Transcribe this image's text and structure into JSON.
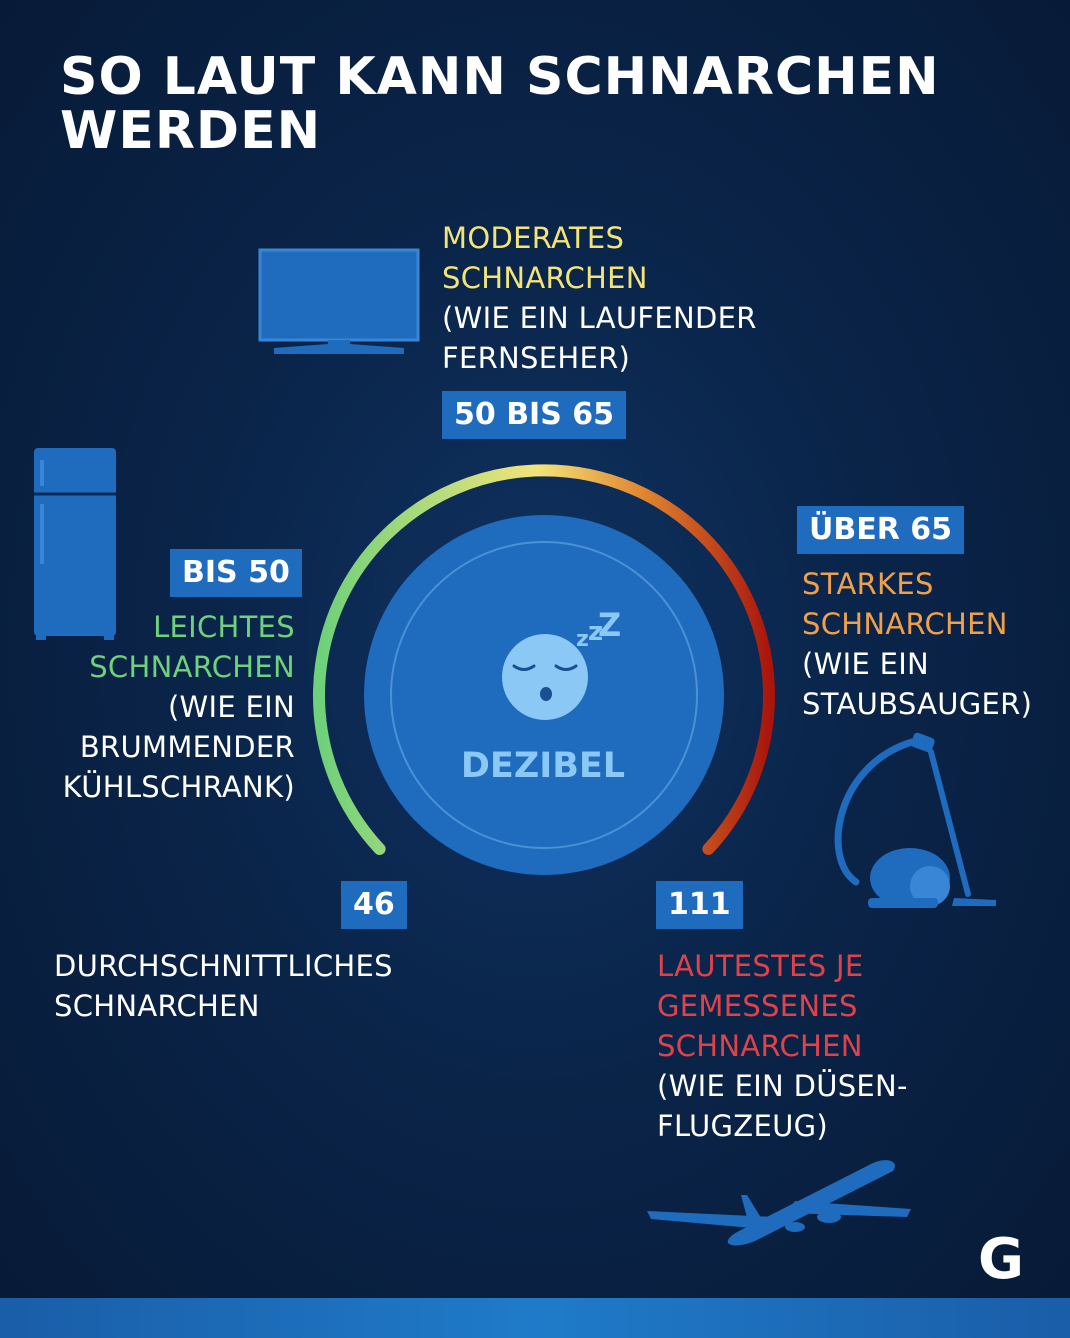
{
  "title": {
    "line1": "SO LAUT KANN SCHNARCHEN",
    "line2": "WERDEN"
  },
  "center": {
    "unit": "DEZIBEL"
  },
  "levels": {
    "moderate": {
      "badge": "50 BIS 65",
      "title_line1": "MODERATES",
      "title_line2": "SCHNARCHEN",
      "desc_line1": "(WIE EIN LAUFENDER",
      "desc_line2": "FERNSEHER)",
      "color": "#f3e47a",
      "icon": "tv-icon"
    },
    "light": {
      "badge": "BIS 50",
      "title_line1": "LEICHTES",
      "title_line2": "SCHNARCHEN",
      "desc_line1": "(WIE EIN",
      "desc_line2": "BRUMMENDER",
      "desc_line3": "KÜHLSCHRANK)",
      "color": "#6fd17a",
      "icon": "fridge-icon"
    },
    "strong": {
      "badge": "ÜBER 65",
      "title_line1": "STARKES",
      "title_line2": "SCHNARCHEN",
      "desc_line1": "(WIE EIN",
      "desc_line2": "STAUBSAUGER)",
      "color": "#f0a04b",
      "icon": "vacuum-icon"
    },
    "average": {
      "badge": "46",
      "title_line1": "DURCHSCHNITTLICHES",
      "title_line2": "SCHNARCHEN",
      "color": "#ffffff"
    },
    "loudest": {
      "badge": "111",
      "title_line1": "LAUTESTES JE",
      "title_line2": "GEMESSENES",
      "title_line3": "SCHNARCHEN",
      "desc_line1": "(WIE EIN DÜSEN-",
      "desc_line2": "FLUGZEUG)",
      "color": "#e0424a",
      "icon": "airplane-icon"
    }
  },
  "logo": "G",
  "colors": {
    "background": "#0a2449",
    "accent": "#1f6bbd",
    "dial": "#1f6bbd"
  }
}
